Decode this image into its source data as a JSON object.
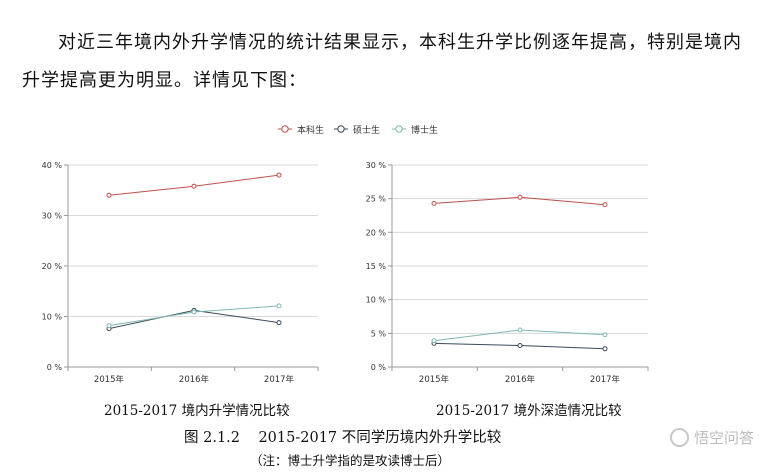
{
  "text": {
    "paragraph": "对近三年境内外升学情况的统计结果显示，本科生升学比例逐年提高，特别是境内升学提高更为明显。详情见下图：",
    "figure_caption": "图 2.1.2    2015-2017 不同学历境内外升学比较",
    "note": "（注：博士升学指的是攻读博士后）",
    "watermark": "悟空问答"
  },
  "legend": [
    "本科生",
    "硕士生",
    "博士生"
  ],
  "colors": {
    "本科生": "#c0504d",
    "硕士生": "#3a4a5c",
    "博士生": "#7fb8b5",
    "grid": "#d9d9d9",
    "axis": "#999999"
  },
  "chart_data": [
    {
      "type": "line",
      "title": "2015-2017 境内升学情况比较",
      "x": [
        "2015年",
        "2016年",
        "2017年"
      ],
      "yticks": [
        "0 %",
        "10 %",
        "20 %",
        "30 %",
        "40 %"
      ],
      "ylim": [
        0,
        40
      ],
      "grid": true,
      "legend_position": "top-center",
      "series": [
        {
          "name": "本科生",
          "values": [
            34,
            35.8,
            38
          ]
        },
        {
          "name": "硕士生",
          "values": [
            7.6,
            11.2,
            8.8
          ]
        },
        {
          "name": "博士生",
          "values": [
            8.2,
            10.9,
            12.1
          ]
        }
      ]
    },
    {
      "type": "line",
      "title": "2015-2017 境外深造情况比较",
      "x": [
        "2015年",
        "2016年",
        "2017年"
      ],
      "yticks": [
        "0 %",
        "5 %",
        "10 %",
        "15 %",
        "20 %",
        "25 %",
        "30 %"
      ],
      "ylim": [
        0,
        30
      ],
      "grid": true,
      "legend_position": "top-center",
      "series": [
        {
          "name": "本科生",
          "values": [
            24.3,
            25.2,
            24.1
          ]
        },
        {
          "name": "硕士生",
          "values": [
            3.5,
            3.2,
            2.7
          ]
        },
        {
          "name": "博士生",
          "values": [
            3.9,
            5.5,
            4.8
          ]
        }
      ]
    }
  ]
}
